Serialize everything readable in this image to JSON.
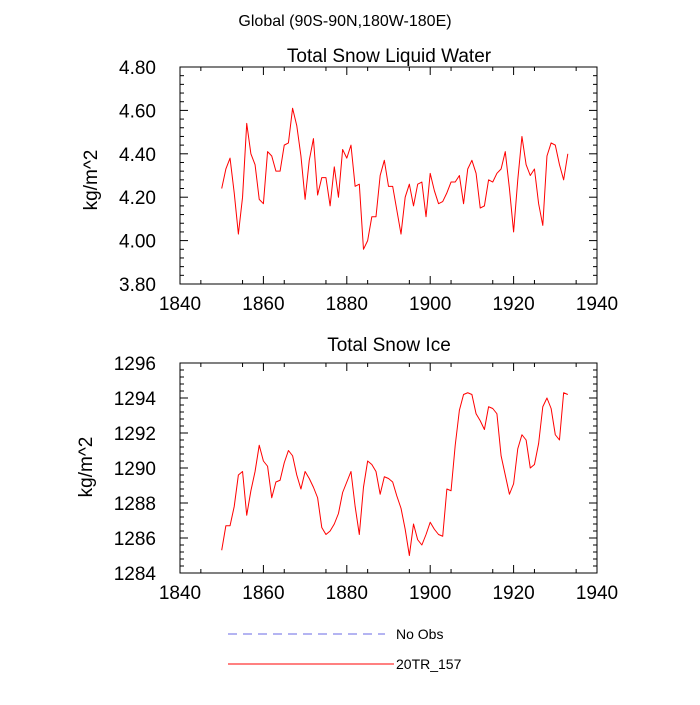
{
  "page": {
    "suptitle": "Global (90S-90N,180W-180E)"
  },
  "chart_data": [
    {
      "type": "line",
      "title": "Total Snow Liquid Water",
      "xlabel": "",
      "ylabel": "kg/m^2",
      "xlim": [
        1840,
        1940
      ],
      "ylim": [
        3.8,
        4.8
      ],
      "xticks": [
        1840,
        1860,
        1880,
        1900,
        1920,
        1940
      ],
      "xtick_labels": [
        "1840",
        "1860",
        "1880",
        "1900",
        "1920",
        "1940"
      ],
      "yticks": [
        3.8,
        4.0,
        4.2,
        4.4,
        4.6,
        4.8
      ],
      "ytick_labels": [
        "3.80",
        "4.00",
        "4.20",
        "4.40",
        "4.60",
        "4.80"
      ],
      "series": [
        {
          "name": "20TR_157",
          "color": "#ff0000",
          "x": [
            1850,
            1851,
            1852,
            1853,
            1854,
            1855,
            1856,
            1857,
            1858,
            1859,
            1860,
            1861,
            1862,
            1863,
            1864,
            1865,
            1866,
            1867,
            1868,
            1869,
            1870,
            1871,
            1872,
            1873,
            1874,
            1875,
            1876,
            1877,
            1878,
            1879,
            1880,
            1881,
            1882,
            1883,
            1884,
            1885,
            1886,
            1887,
            1888,
            1889,
            1890,
            1891,
            1892,
            1893,
            1894,
            1895,
            1896,
            1897,
            1898,
            1899,
            1900,
            1901,
            1902,
            1903,
            1904,
            1905,
            1906,
            1907,
            1908,
            1909,
            1910,
            1911,
            1912,
            1913,
            1914,
            1915,
            1916,
            1917,
            1918,
            1919,
            1920,
            1921,
            1922,
            1923,
            1924,
            1925,
            1926,
            1927,
            1928,
            1929,
            1930,
            1931,
            1932,
            1933
          ],
          "y": [
            4.24,
            4.33,
            4.38,
            4.22,
            4.03,
            4.2,
            4.54,
            4.4,
            4.35,
            4.19,
            4.17,
            4.41,
            4.39,
            4.32,
            4.32,
            4.44,
            4.45,
            4.61,
            4.53,
            4.39,
            4.19,
            4.37,
            4.47,
            4.21,
            4.29,
            4.29,
            4.16,
            4.34,
            4.2,
            4.42,
            4.38,
            4.44,
            4.25,
            4.26,
            3.96,
            4.0,
            4.11,
            4.11,
            4.3,
            4.37,
            4.25,
            4.25,
            4.14,
            4.03,
            4.2,
            4.26,
            4.16,
            4.26,
            4.27,
            4.11,
            4.31,
            4.23,
            4.17,
            4.18,
            4.22,
            4.27,
            4.27,
            4.3,
            4.17,
            4.33,
            4.37,
            4.31,
            4.15,
            4.16,
            4.28,
            4.27,
            4.31,
            4.33,
            4.41,
            4.24,
            4.04,
            4.28,
            4.48,
            4.35,
            4.3,
            4.33,
            4.17,
            4.07,
            4.39,
            4.45,
            4.44,
            4.35,
            4.28,
            4.4
          ]
        }
      ]
    },
    {
      "type": "line",
      "title": "Total Snow Ice",
      "xlabel": "",
      "ylabel": "kg/m^2",
      "xlim": [
        1840,
        1940
      ],
      "ylim": [
        1284,
        1296
      ],
      "xticks": [
        1840,
        1860,
        1880,
        1900,
        1920,
        1940
      ],
      "xtick_labels": [
        "1840",
        "1860",
        "1880",
        "1900",
        "1920",
        "1940"
      ],
      "yticks": [
        1284,
        1286,
        1288,
        1290,
        1292,
        1294,
        1296
      ],
      "ytick_labels": [
        "1284",
        "1286",
        "1288",
        "1290",
        "1292",
        "1294",
        "1296"
      ],
      "series": [
        {
          "name": "20TR_157",
          "color": "#ff0000",
          "x": [
            1850,
            1851,
            1852,
            1853,
            1854,
            1855,
            1856,
            1857,
            1858,
            1859,
            1860,
            1861,
            1862,
            1863,
            1864,
            1865,
            1866,
            1867,
            1868,
            1869,
            1870,
            1871,
            1872,
            1873,
            1874,
            1875,
            1876,
            1877,
            1878,
            1879,
            1880,
            1881,
            1882,
            1883,
            1884,
            1885,
            1886,
            1887,
            1888,
            1889,
            1890,
            1891,
            1892,
            1893,
            1894,
            1895,
            1896,
            1897,
            1898,
            1899,
            1900,
            1901,
            1902,
            1903,
            1904,
            1905,
            1906,
            1907,
            1908,
            1909,
            1910,
            1911,
            1912,
            1913,
            1914,
            1915,
            1916,
            1917,
            1918,
            1919,
            1920,
            1921,
            1922,
            1923,
            1924,
            1925,
            1926,
            1927,
            1928,
            1929,
            1930,
            1931,
            1932,
            1933
          ],
          "y": [
            1285.3,
            1286.7,
            1286.7,
            1287.8,
            1289.6,
            1289.8,
            1287.3,
            1288.7,
            1289.8,
            1291.3,
            1290.4,
            1290.1,
            1288.3,
            1289.2,
            1289.3,
            1290.3,
            1291.0,
            1290.7,
            1289.6,
            1288.8,
            1289.8,
            1289.4,
            1288.9,
            1288.3,
            1286.6,
            1286.2,
            1286.4,
            1286.8,
            1287.4,
            1288.6,
            1289.2,
            1289.8,
            1287.8,
            1286.2,
            1288.9,
            1290.4,
            1290.2,
            1289.8,
            1288.5,
            1289.5,
            1289.4,
            1289.2,
            1288.4,
            1287.7,
            1286.5,
            1285.0,
            1286.8,
            1285.9,
            1285.6,
            1286.2,
            1286.9,
            1286.5,
            1286.2,
            1286.1,
            1288.8,
            1288.7,
            1291.3,
            1293.3,
            1294.2,
            1294.3,
            1294.2,
            1293.1,
            1292.7,
            1292.2,
            1293.5,
            1293.4,
            1293.1,
            1290.7,
            1289.6,
            1288.5,
            1289.1,
            1291.1,
            1291.9,
            1291.6,
            1290.0,
            1290.2,
            1291.4,
            1293.5,
            1294.0,
            1293.4,
            1291.9,
            1291.6,
            1294.3,
            1294.2
          ]
        }
      ]
    }
  ],
  "legend": {
    "placement": "bottom-center",
    "entries": [
      {
        "label": "No Obs",
        "color": "#6a6ae6",
        "style": "dashed"
      },
      {
        "label": "20TR_157",
        "color": "#ff0000",
        "style": "solid"
      }
    ]
  }
}
